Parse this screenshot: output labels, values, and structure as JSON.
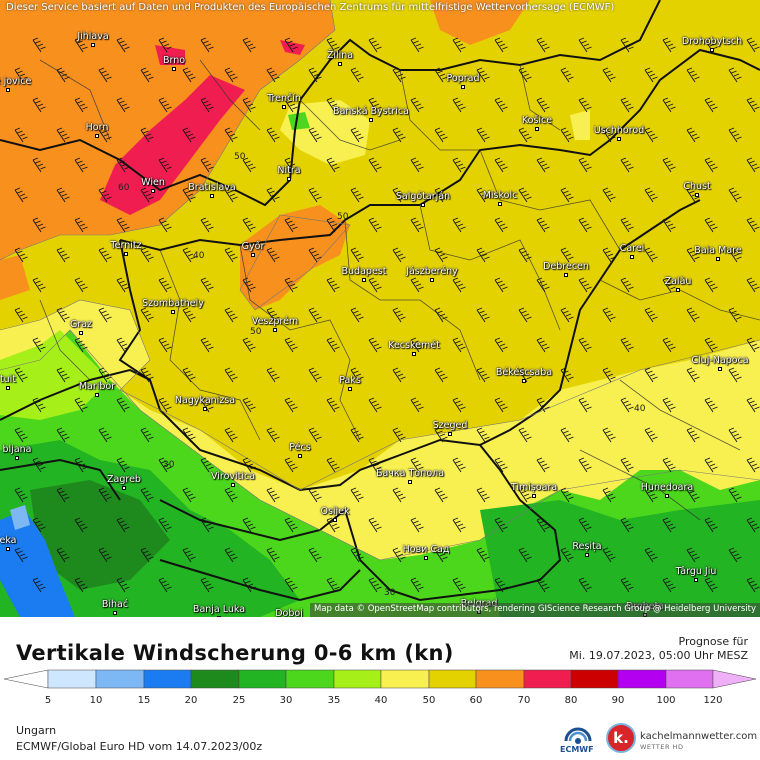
{
  "header": {
    "banner": "Dieser Service basiert auf Daten und Produkten des Europäischen Zentrums für mittelfristige Wettervorhersage (ECMWF)",
    "attribution": "Map data © OpenStreetMap contributors, rendering GIScience Research Group @ Heidelberg University"
  },
  "cities": [
    {
      "name": "Jihlava"
    },
    {
      "name": "Brno"
    },
    {
      "name": "Žilina"
    },
    {
      "name": "Poprad"
    },
    {
      "name": "Drohobytsch"
    },
    {
      "name": "Trenčín"
    },
    {
      "name": "Banská Bystrica"
    },
    {
      "name": "Košice"
    },
    {
      "name": "Uschhorod"
    },
    {
      "name": "Horn"
    },
    {
      "name": "Nitra"
    },
    {
      "name": "Wien"
    },
    {
      "name": "Bratislava"
    },
    {
      "name": "Salgótarján"
    },
    {
      "name": "Miskolc"
    },
    {
      "name": "Chust"
    },
    {
      "name": "Ternitz"
    },
    {
      "name": "Győr"
    },
    {
      "name": "Budapest"
    },
    {
      "name": "Jászberény"
    },
    {
      "name": "Debrecen"
    },
    {
      "name": "Carei"
    },
    {
      "name": "Baia Mare"
    },
    {
      "name": "Szombathely"
    },
    {
      "name": "Zalău"
    },
    {
      "name": "Graz"
    },
    {
      "name": "Veszprém"
    },
    {
      "name": "Kecskemét"
    },
    {
      "name": "Cluj-Napoca"
    },
    {
      "name": "Maribor"
    },
    {
      "name": "Paks"
    },
    {
      "name": "Békéscsaba"
    },
    {
      "name": "Nagykanizsa"
    },
    {
      "name": "Szeged"
    },
    {
      "name": "Pécs"
    },
    {
      "name": "Бачка Топола"
    },
    {
      "name": "Zagreb"
    },
    {
      "name": "Virovitica"
    },
    {
      "name": "Timișoara"
    },
    {
      "name": "Hunedoara"
    },
    {
      "name": "Osijek"
    },
    {
      "name": "Нови Сад"
    },
    {
      "name": "Reșița"
    },
    {
      "name": "Târgu Jiu"
    },
    {
      "name": "Bihać"
    },
    {
      "name": "Banja Luka"
    },
    {
      "name": "Doboj"
    },
    {
      "name": "Belgrad"
    },
    {
      "name": "Drobeta"
    },
    {
      "name": "bljana"
    },
    {
      "name": "šké jovice"
    },
    {
      "name": "tuit"
    },
    {
      "name": "eka"
    }
  ],
  "contour_labels": [
    "60",
    "50",
    "50",
    "40",
    "50",
    "40",
    "30",
    "30"
  ],
  "legend": {
    "title": "Vertikale Windscherung 0-6 km (kn)",
    "prognose_label": "Prognose für",
    "prognose_date": "Mi. 19.07.2023, 05:00 Uhr MESZ",
    "ticks": [
      "5",
      "10",
      "15",
      "20",
      "25",
      "30",
      "35",
      "40",
      "50",
      "60",
      "70",
      "80",
      "90",
      "100",
      "120"
    ],
    "colors": [
      "#ffffff",
      "#cfe6ff",
      "#7db8f5",
      "#1a7cf0",
      "#1e8a1e",
      "#22b422",
      "#4cd61c",
      "#a6ef18",
      "#f8f050",
      "#e4d200",
      "#f8901e",
      "#f01e50",
      "#cc0000",
      "#b400f0",
      "#e070f0",
      "#f0b0f8",
      "#fbe6fb"
    ],
    "region": "Ungarn",
    "model": "ECMWF/Global Euro HD vom  14.07.2023/00z"
  },
  "logos": {
    "ecmwf": "ECMWF",
    "brand": "kachelmannwetter.com",
    "brand_sub": "WETTER HD",
    "brand_letter": "k."
  }
}
